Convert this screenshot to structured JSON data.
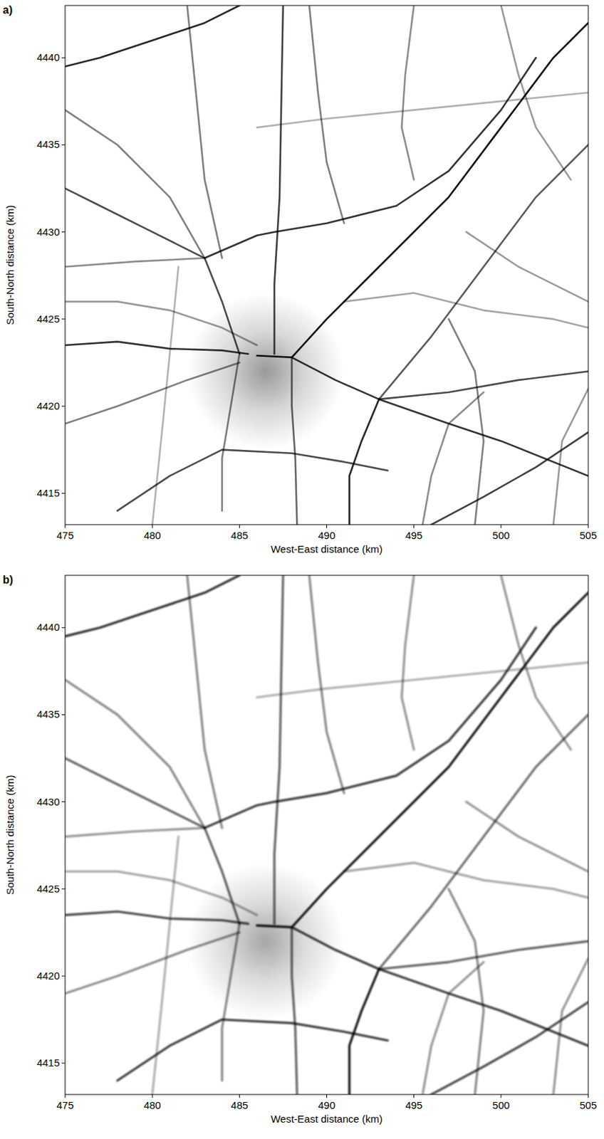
{
  "chart_data": [
    {
      "type": "map",
      "label": "a)",
      "xlabel": "West-East distance (km)",
      "ylabel": "South-North distance (km)",
      "xlim": [
        475,
        505
      ],
      "ylim": [
        4413.2,
        4443
      ],
      "xticks": [
        475,
        480,
        485,
        490,
        495,
        500,
        505
      ],
      "yticks": [
        4415,
        4420,
        4425,
        4430,
        4435,
        4440
      ],
      "color": "#000000",
      "diffuse": {
        "x": 486.5,
        "y": 4422,
        "radius": 4.5,
        "intensity": 0.4
      },
      "lines": [
        {
          "x": [
            486,
            488,
            490,
            493,
            497,
            500,
            503,
            505
          ],
          "y": [
            4422.9,
            4422.8,
            4425,
            4428,
            4432,
            4436,
            4440,
            4442
          ],
          "intensity": 0.95
        },
        {
          "x": [
            488,
            490.5,
            493,
            497,
            500,
            505
          ],
          "y": [
            4422.8,
            4421.5,
            4420.4,
            4419,
            4418,
            4416
          ],
          "intensity": 0.8
        },
        {
          "x": [
            493,
            497,
            501,
            505
          ],
          "y": [
            4420.4,
            4420.8,
            4421.5,
            4422
          ],
          "intensity": 0.7
        },
        {
          "x": [
            487,
            487,
            487.3,
            487.5
          ],
          "y": [
            4423,
            4427,
            4432,
            4443
          ],
          "intensity": 0.75
        },
        {
          "x": [
            485,
            484,
            483,
            480,
            477,
            475
          ],
          "y": [
            4423,
            4426,
            4428.5,
            4430,
            4431.5,
            4432.5
          ],
          "intensity": 0.7
        },
        {
          "x": [
            483,
            486,
            487,
            490,
            494,
            497,
            500,
            502
          ],
          "y": [
            4428.5,
            4429.8,
            4430,
            4430.5,
            4431.5,
            4433.5,
            4437,
            4440
          ],
          "intensity": 0.8
        },
        {
          "x": [
            475,
            478,
            481,
            484,
            485.5
          ],
          "y": [
            4423.5,
            4423.7,
            4423.3,
            4423.2,
            4423
          ],
          "intensity": 0.8
        },
        {
          "x": [
            475,
            478,
            482,
            485
          ],
          "y": [
            4419,
            4420,
            4421.5,
            4422.5
          ],
          "intensity": 0.5
        },
        {
          "x": [
            488,
            488,
            488.2,
            488.3
          ],
          "y": [
            4422.8,
            4420,
            4417,
            4413.2
          ],
          "intensity": 0.6
        },
        {
          "x": [
            478,
            481,
            484,
            488,
            491,
            493.5
          ],
          "y": [
            4414,
            4416,
            4417.5,
            4417.3,
            4416.8,
            4416.3
          ],
          "intensity": 0.7
        },
        {
          "x": [
            493,
            492,
            491.3,
            491.3
          ],
          "y": [
            4420.4,
            4418,
            4416,
            4413.2
          ],
          "intensity": 0.85
        },
        {
          "x": [
            493,
            496,
            499,
            502,
            505
          ],
          "y": [
            4420.4,
            4424,
            4428,
            4432,
            4435
          ],
          "intensity": 0.65
        },
        {
          "x": [
            496,
            499,
            502,
            505
          ],
          "y": [
            4413.2,
            4414.8,
            4416.5,
            4418.5
          ],
          "intensity": 0.75
        },
        {
          "x": [
            475,
            477,
            480,
            483,
            485
          ],
          "y": [
            4439.5,
            4440,
            4441,
            4442,
            4443
          ],
          "intensity": 0.85
        },
        {
          "x": [
            497,
            498.5,
            499,
            498.5
          ],
          "y": [
            4425,
            4422,
            4418,
            4413.2
          ],
          "intensity": 0.5
        },
        {
          "x": [
            475,
            478,
            481,
            483
          ],
          "y": [
            4437,
            4435,
            4432,
            4428.5
          ],
          "intensity": 0.5
        },
        {
          "x": [
            489,
            489.5,
            490,
            491
          ],
          "y": [
            4443,
            4438,
            4434,
            4430.5
          ],
          "intensity": 0.5
        },
        {
          "x": [
            495,
            494.5,
            494.3,
            495
          ],
          "y": [
            4443,
            4439,
            4436,
            4433
          ],
          "intensity": 0.45
        },
        {
          "x": [
            475,
            479,
            483
          ],
          "y": [
            4428,
            4428.3,
            4428.5
          ],
          "intensity": 0.45
        },
        {
          "x": [
            485,
            484.5,
            484,
            484
          ],
          "y": [
            4423,
            4420,
            4417,
            4414
          ],
          "intensity": 0.5
        },
        {
          "x": [
            482,
            482.5,
            483,
            484
          ],
          "y": [
            4443,
            4438,
            4433,
            4428.5
          ],
          "intensity": 0.5
        },
        {
          "x": [
            491,
            495,
            499,
            503,
            505
          ],
          "y": [
            4426,
            4426.5,
            4425.5,
            4425,
            4424.5
          ],
          "intensity": 0.35
        },
        {
          "x": [
            500,
            501,
            502,
            504
          ],
          "y": [
            4443,
            4439,
            4436,
            4433
          ],
          "intensity": 0.4
        },
        {
          "x": [
            486,
            490,
            495,
            500,
            505
          ],
          "y": [
            4436,
            4436.5,
            4437,
            4437.5,
            4438
          ],
          "intensity": 0.3
        },
        {
          "x": [
            475,
            478,
            481,
            484,
            486
          ],
          "y": [
            4426,
            4426,
            4425.5,
            4424.5,
            4423.5
          ],
          "intensity": 0.4
        },
        {
          "x": [
            480,
            480.5,
            481,
            481.5
          ],
          "y": [
            4413.2,
            4418,
            4423,
            4428
          ],
          "intensity": 0.3
        },
        {
          "x": [
            495.5,
            496,
            497,
            499
          ],
          "y": [
            4413.2,
            4416,
            4419,
            4420.8
          ],
          "intensity": 0.45
        },
        {
          "x": [
            503,
            503.5,
            505
          ],
          "y": [
            4413.2,
            4418,
            4421
          ],
          "intensity": 0.4
        },
        {
          "x": [
            498,
            501,
            505
          ],
          "y": [
            4430,
            4428,
            4426
          ],
          "intensity": 0.4
        }
      ]
    },
    {
      "type": "map",
      "label": "b)",
      "xlabel": "West-East distance (km)",
      "ylabel": "South-North distance (km)",
      "xlim": [
        475,
        505
      ],
      "ylim": [
        4413.2,
        4443
      ],
      "xticks": [
        475,
        480,
        485,
        490,
        495,
        500,
        505
      ],
      "yticks": [
        4415,
        4420,
        4425,
        4430,
        4435,
        4440
      ],
      "color": "#000000",
      "diffuse": {
        "x": 486.5,
        "y": 4422,
        "radius": 4.5,
        "intensity": 0.35
      },
      "lines": [
        {
          "x": [
            486,
            488,
            490,
            493,
            497,
            500,
            503,
            505
          ],
          "y": [
            4422.9,
            4422.8,
            4425,
            4428,
            4432,
            4436,
            4440,
            4442
          ],
          "intensity": 0.9
        },
        {
          "x": [
            488,
            490.5,
            493,
            497,
            500,
            505
          ],
          "y": [
            4422.8,
            4421.5,
            4420.4,
            4419,
            4418,
            4416
          ],
          "intensity": 0.75
        },
        {
          "x": [
            493,
            497,
            501,
            505
          ],
          "y": [
            4420.4,
            4420.8,
            4421.5,
            4422
          ],
          "intensity": 0.6
        },
        {
          "x": [
            487,
            487,
            487.3,
            487.5
          ],
          "y": [
            4423,
            4427,
            4432,
            4443
          ],
          "intensity": 0.6
        },
        {
          "x": [
            485,
            484,
            483,
            480,
            477,
            475
          ],
          "y": [
            4423,
            4426,
            4428.5,
            4430,
            4431.5,
            4432.5
          ],
          "intensity": 0.6
        },
        {
          "x": [
            483,
            486,
            487,
            490,
            494,
            497,
            500,
            502
          ],
          "y": [
            4428.5,
            4429.8,
            4430,
            4430.5,
            4431.5,
            4433.5,
            4437,
            4440
          ],
          "intensity": 0.75
        },
        {
          "x": [
            475,
            478,
            481,
            484,
            485.5
          ],
          "y": [
            4423.5,
            4423.7,
            4423.3,
            4423.2,
            4423
          ],
          "intensity": 0.7
        },
        {
          "x": [
            475,
            478,
            482,
            485
          ],
          "y": [
            4419,
            4420,
            4421.5,
            4422.5
          ],
          "intensity": 0.45
        },
        {
          "x": [
            488,
            488,
            488.2,
            488.3
          ],
          "y": [
            4422.8,
            4420,
            4417,
            4413.2
          ],
          "intensity": 0.6
        },
        {
          "x": [
            478,
            481,
            484,
            488,
            491,
            493.5
          ],
          "y": [
            4414,
            4416,
            4417.5,
            4417.3,
            4416.8,
            4416.3
          ],
          "intensity": 0.75
        },
        {
          "x": [
            493,
            492,
            491.3,
            491.3
          ],
          "y": [
            4420.4,
            4418,
            4416,
            4413.2
          ],
          "intensity": 0.9
        },
        {
          "x": [
            493,
            496,
            499,
            502,
            505
          ],
          "y": [
            4420.4,
            4424,
            4428,
            4432,
            4435
          ],
          "intensity": 0.55
        },
        {
          "x": [
            496,
            499,
            502,
            505
          ],
          "y": [
            4413.2,
            4414.8,
            4416.5,
            4418.5
          ],
          "intensity": 0.7
        },
        {
          "x": [
            475,
            477,
            480,
            483,
            485
          ],
          "y": [
            4439.5,
            4440,
            4441,
            4442,
            4443
          ],
          "intensity": 0.8
        },
        {
          "x": [
            497,
            498.5,
            499,
            498.5
          ],
          "y": [
            4425,
            4422,
            4418,
            4413.2
          ],
          "intensity": 0.45
        },
        {
          "x": [
            475,
            478,
            481,
            483
          ],
          "y": [
            4437,
            4435,
            4432,
            4428.5
          ],
          "intensity": 0.45
        },
        {
          "x": [
            489,
            489.5,
            490,
            491
          ],
          "y": [
            4443,
            4438,
            4434,
            4430.5
          ],
          "intensity": 0.45
        },
        {
          "x": [
            495,
            494.5,
            494.3,
            495
          ],
          "y": [
            4443,
            4439,
            4436,
            4433
          ],
          "intensity": 0.4
        },
        {
          "x": [
            475,
            479,
            483
          ],
          "y": [
            4428,
            4428.3,
            4428.5
          ],
          "intensity": 0.4
        },
        {
          "x": [
            485,
            484.5,
            484,
            484
          ],
          "y": [
            4423,
            4420,
            4417,
            4414
          ],
          "intensity": 0.45
        },
        {
          "x": [
            482,
            482.5,
            483,
            484
          ],
          "y": [
            4443,
            4438,
            4433,
            4428.5
          ],
          "intensity": 0.45
        },
        {
          "x": [
            491,
            495,
            499,
            503,
            505
          ],
          "y": [
            4426,
            4426.5,
            4425.5,
            4425,
            4424.5
          ],
          "intensity": 0.35
        },
        {
          "x": [
            500,
            501,
            502,
            504
          ],
          "y": [
            4443,
            4439,
            4436,
            4433
          ],
          "intensity": 0.4
        },
        {
          "x": [
            486,
            490,
            495,
            500,
            505
          ],
          "y": [
            4436,
            4436.5,
            4437,
            4437.5,
            4438
          ],
          "intensity": 0.3
        },
        {
          "x": [
            475,
            478,
            481,
            484,
            486
          ],
          "y": [
            4426,
            4426,
            4425.5,
            4424.5,
            4423.5
          ],
          "intensity": 0.35
        },
        {
          "x": [
            480,
            480.5,
            481,
            481.5
          ],
          "y": [
            4413.2,
            4418,
            4423,
            4428
          ],
          "intensity": 0.3
        },
        {
          "x": [
            495.5,
            496,
            497,
            499
          ],
          "y": [
            4413.2,
            4416,
            4419,
            4420.8
          ],
          "intensity": 0.4
        },
        {
          "x": [
            503,
            503.5,
            505
          ],
          "y": [
            4413.2,
            4418,
            4421
          ],
          "intensity": 0.4
        },
        {
          "x": [
            498,
            501,
            505
          ],
          "y": [
            4430,
            4428,
            4426
          ],
          "intensity": 0.4
        }
      ]
    }
  ]
}
